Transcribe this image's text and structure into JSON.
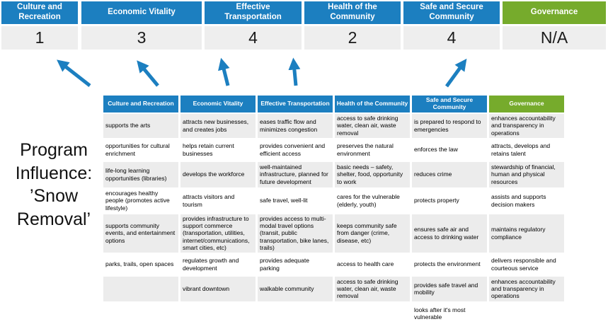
{
  "program_title": "Program Influence: ’Snow Removal’",
  "colors": {
    "header_blue": "#1c7fc0",
    "header_green": "#76ab2c",
    "highlight_yellow": "#fbf7a1",
    "band_gray": "#ececec",
    "score_row_gray": "#eeeeee",
    "arrow_blue": "#1c7fc0"
  },
  "scoreboard": {
    "columns": [
      {
        "label": "Culture and Recreation",
        "score": "1",
        "theme": "blue"
      },
      {
        "label": "Economic Vitality",
        "score": "3",
        "theme": "blue"
      },
      {
        "label": "Effective Transportation",
        "score": "4",
        "theme": "blue"
      },
      {
        "label": "Health of the Community",
        "score": "2",
        "theme": "blue"
      },
      {
        "label": "Safe and Secure Community",
        "score": "4",
        "theme": "blue"
      },
      {
        "label": "Governance",
        "score": "N/A",
        "theme": "green"
      }
    ]
  },
  "matrix": {
    "headers": [
      {
        "label": "Culture and Recreation",
        "theme": "blue"
      },
      {
        "label": "Economic Vitality",
        "theme": "blue"
      },
      {
        "label": "Effective Transportation",
        "theme": "blue"
      },
      {
        "label": "Health of the Community",
        "theme": "blue"
      },
      {
        "label": "Safe and Secure Community",
        "theme": "blue"
      },
      {
        "label": "Governance",
        "theme": "green"
      }
    ],
    "rows": [
      [
        {
          "text": "supports the arts",
          "hl": false
        },
        {
          "text": "attracts new businesses, and creates jobs",
          "hl": false
        },
        {
          "text": "eases traffic flow and minimizes congestion",
          "hl": true
        },
        {
          "text": "access to safe drinking water, clean air, waste removal",
          "hl": false
        },
        {
          "text": "is prepared to respond to emergencies",
          "hl": true
        },
        {
          "text": "enhances accountability and transparency in operations",
          "hl": false
        }
      ],
      [
        {
          "text": "opportunities for cultural enrichment",
          "hl": false
        },
        {
          "text": "helps retain current businesses",
          "hl": true
        },
        {
          "text": "provides convenient and efficient access",
          "hl": true
        },
        {
          "text": "preserves the natural environment",
          "hl": false
        },
        {
          "text": "enforces the law",
          "hl": false
        },
        {
          "text": "attracts, develops and retains talent",
          "hl": false
        }
      ],
      [
        {
          "text": "life-long learning opportunities (libraries)",
          "hl": false
        },
        {
          "text": "develops the workforce",
          "hl": false
        },
        {
          "text": "well-maintained infrastructure, planned for future development",
          "hl": false
        },
        {
          "text": "basic needs – safety, shelter, food, opportunity to work",
          "hl": true
        },
        {
          "text": "reduces crime",
          "hl": false
        },
        {
          "text": "stewardship of financial, human and physical resources",
          "hl": false
        }
      ],
      [
        {
          "text": "encourages healthy people (promotes active lifestyle)",
          "hl": false
        },
        {
          "text": "attracts visitors and tourism",
          "hl": false
        },
        {
          "text": "safe travel, well-lit",
          "hl": true
        },
        {
          "text": "cares for the vulnerable (elderly, youth)",
          "hl": true
        },
        {
          "text": "protects property",
          "hl": true
        },
        {
          "text": "assists and supports decision makers",
          "hl": false
        }
      ],
      [
        {
          "text": "supports community events, and entertainment options",
          "hl": false
        },
        {
          "text": "provides infrastructure to support commerce (transportation, utilities, internet/communications, smart cities, etc)",
          "hl": true
        },
        {
          "text": "provides access to multi-modal travel options (transit, public transportation, bike lanes, trails)",
          "hl": true
        },
        {
          "text": "keeps community safe from danger (crime, disease, etc)",
          "hl": true
        },
        {
          "text": "ensures safe air and access to drinking water",
          "hl": false
        },
        {
          "text": "maintains regulatory compliance",
          "hl": false
        }
      ],
      [
        {
          "text": "parks, trails, open spaces",
          "hl": true
        },
        {
          "text": "regulates growth and development",
          "hl": false
        },
        {
          "text": "provides adequate parking",
          "hl": false
        },
        {
          "text": "access to health care",
          "hl": false
        },
        {
          "text": "protects the environment",
          "hl": false
        },
        {
          "text": "delivers responsible and courteous service",
          "hl": false
        }
      ],
      [
        {
          "text": "",
          "hl": false
        },
        {
          "text": "vibrant downtown",
          "hl": false
        },
        {
          "text": "walkable community",
          "hl": false
        },
        {
          "text": "access to safe drinking water, clean air, waste removal",
          "hl": false
        },
        {
          "text": "provides safe travel and mobility",
          "hl": true
        },
        {
          "text": "enhances accountability and transparency in operations",
          "hl": false
        }
      ],
      [
        {
          "text": "",
          "hl": false
        },
        {
          "text": "",
          "hl": false
        },
        {
          "text": "",
          "hl": false
        },
        {
          "text": "",
          "hl": false
        },
        {
          "text": "looks after it's most vulnerable",
          "hl": true
        },
        {
          "text": "",
          "hl": false
        }
      ]
    ]
  }
}
